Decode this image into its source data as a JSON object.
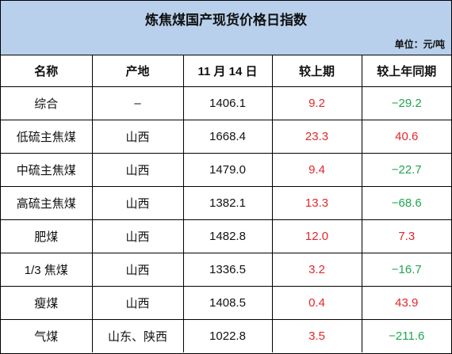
{
  "title": "炼焦煤国产现货价格日指数",
  "unit": "单位：元/吨",
  "table": {
    "header": [
      "名称",
      "产地",
      "11 月 14 日",
      "较上期",
      "较上年同期"
    ],
    "rows": [
      [
        "综合",
        "–",
        "1406.1",
        "9.2",
        "−29.2"
      ],
      [
        "低硫主焦煤",
        "山西",
        "1668.4",
        "23.3",
        "40.6"
      ],
      [
        "中硫主焦煤",
        "山西",
        "1479.0",
        "9.4",
        "−22.7"
      ],
      [
        "高硫主焦煤",
        "山西",
        "1382.1",
        "13.3",
        "−68.6"
      ],
      [
        "肥煤",
        "山西",
        "1482.8",
        "12.0",
        "7.3"
      ],
      [
        "1/3 焦煤",
        "山西",
        "1336.5",
        "3.2",
        "−16.7"
      ],
      [
        "瘦煤",
        "山西",
        "1408.5",
        "0.4",
        "43.9"
      ],
      [
        "气煤",
        "山东、陕西",
        "1022.8",
        "3.5",
        "−211.6"
      ]
    ]
  }
}
